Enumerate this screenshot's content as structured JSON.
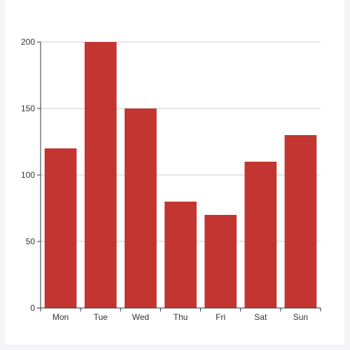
{
  "colors": {
    "bar": "#c23531",
    "grid": "#cccccc",
    "axis": "#333333",
    "text": "#333333",
    "background": "#ffffff",
    "page": "#f5f5f8"
  },
  "chart_data": {
    "type": "bar",
    "categories": [
      "Mon",
      "Tue",
      "Wed",
      "Thu",
      "Fri",
      "Sat",
      "Sun"
    ],
    "values": [
      120,
      200,
      150,
      80,
      70,
      110,
      130
    ],
    "ylim": [
      0,
      200
    ],
    "yticks": [
      "0",
      "50",
      "100",
      "150",
      "200"
    ],
    "grid": true,
    "legend": "none"
  }
}
